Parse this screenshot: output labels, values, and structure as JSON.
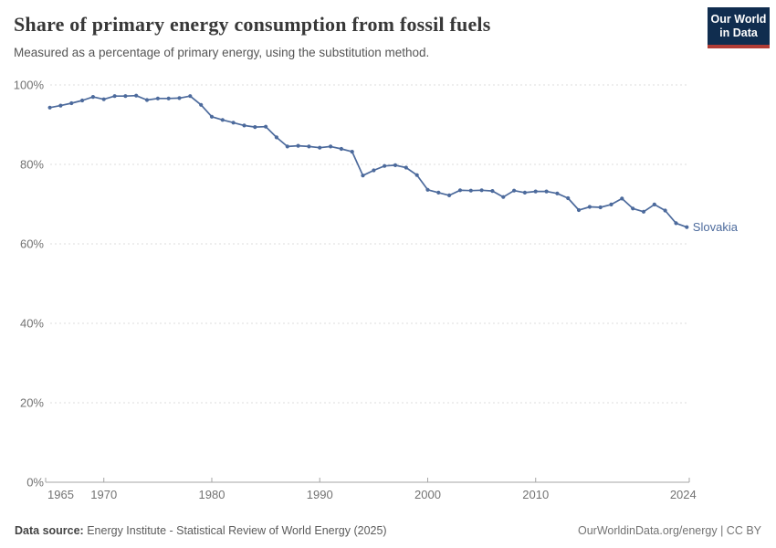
{
  "header": {
    "title": "Share of primary energy consumption from fossil fuels",
    "subtitle": "Measured as a percentage of primary energy, using the substitution method."
  },
  "logo": {
    "line1": "Our World",
    "line2": "in Data"
  },
  "chart_data": {
    "type": "line",
    "title": "Share of primary energy consumption from fossil fuels",
    "subtitle": "Measured as a percentage of primary energy, using the substitution method.",
    "unit": "%",
    "xlabel": "",
    "ylabel": "",
    "ylim": [
      0,
      100
    ],
    "yticks": [
      0,
      20,
      40,
      60,
      80,
      100
    ],
    "ytick_labels": [
      "0%",
      "20%",
      "40%",
      "60%",
      "80%",
      "100%"
    ],
    "xticks": [
      1965,
      1970,
      1980,
      1990,
      2000,
      2010,
      2024
    ],
    "xtick_labels": [
      "1965",
      "1970",
      "1980",
      "1990",
      "2000",
      "2010",
      "2024"
    ],
    "grid": "horizontal-dashed",
    "legend": "line-end-label",
    "x": [
      1965,
      1966,
      1967,
      1968,
      1969,
      1970,
      1971,
      1972,
      1973,
      1974,
      1975,
      1976,
      1977,
      1978,
      1979,
      1980,
      1981,
      1982,
      1983,
      1984,
      1985,
      1986,
      1987,
      1988,
      1989,
      1990,
      1991,
      1992,
      1993,
      1994,
      1995,
      1996,
      1997,
      1998,
      1999,
      2000,
      2001,
      2002,
      2003,
      2004,
      2005,
      2006,
      2007,
      2008,
      2009,
      2010,
      2011,
      2012,
      2013,
      2014,
      2015,
      2016,
      2017,
      2018,
      2019,
      2020,
      2021,
      2022,
      2023,
      2024
    ],
    "series": [
      {
        "name": "Slovakia",
        "color": "#4C6A9C",
        "values": [
          94.3,
          94.8,
          95.4,
          96.1,
          97.0,
          96.4,
          97.2,
          97.2,
          97.3,
          96.2,
          96.6,
          96.6,
          96.7,
          97.2,
          95.0,
          92.0,
          91.2,
          90.5,
          89.8,
          89.4,
          89.5,
          86.8,
          84.5,
          84.7,
          84.5,
          84.2,
          84.5,
          83.9,
          83.2,
          77.2,
          78.5,
          79.6,
          79.8,
          79.2,
          77.3,
          73.6,
          72.9,
          72.2,
          73.5,
          73.4,
          73.5,
          73.3,
          71.8,
          73.4,
          72.9,
          73.2,
          73.2,
          72.7,
          71.5,
          68.5,
          69.3,
          69.2,
          69.9,
          71.4,
          68.9,
          68.1,
          69.9,
          68.4,
          65.2,
          64.2
        ]
      }
    ]
  },
  "footer": {
    "datasource_label": "Data source:",
    "datasource_value": " Energy Institute - Statistical Review of World Energy (2025)",
    "link": "OurWorldinData.org/energy | CC BY"
  },
  "colors": {
    "accent": "#4C6A9C",
    "grid": "#dcdcdc",
    "axis": "#a5a5a5",
    "tick_text": "#737373",
    "logo_bg": "#102d4f",
    "logo_bar": "#b13c35"
  }
}
